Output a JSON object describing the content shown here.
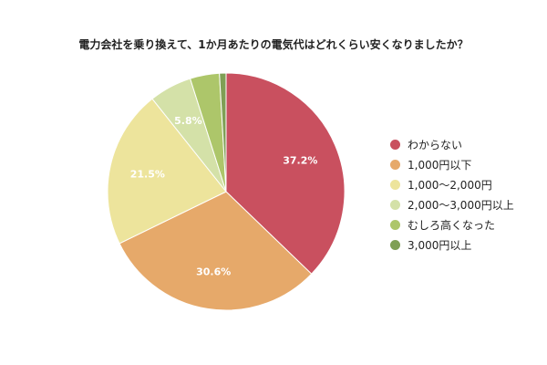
{
  "chart_data": {
    "type": "pie",
    "title": "電力会社を乗り換えて、1か月あたりの電気代はどれくらい安くなりましたか？",
    "categories": [
      "わからない",
      "1,000円以下",
      "1,000〜2,000円",
      "2,000〜3,000円以上",
      "むしろ高くなった",
      "3,000円以上"
    ],
    "values": [
      37.2,
      30.6,
      21.5,
      5.8,
      4.0,
      0.9
    ],
    "value_labels": [
      "37.2%",
      "30.6%",
      "21.5%",
      "5.8%",
      "",
      ""
    ],
    "colors": [
      "#c9505f",
      "#e6a96a",
      "#ede49c",
      "#d4e1a8",
      "#adc66a",
      "#7f9f55"
    ],
    "legend_position": "right"
  }
}
